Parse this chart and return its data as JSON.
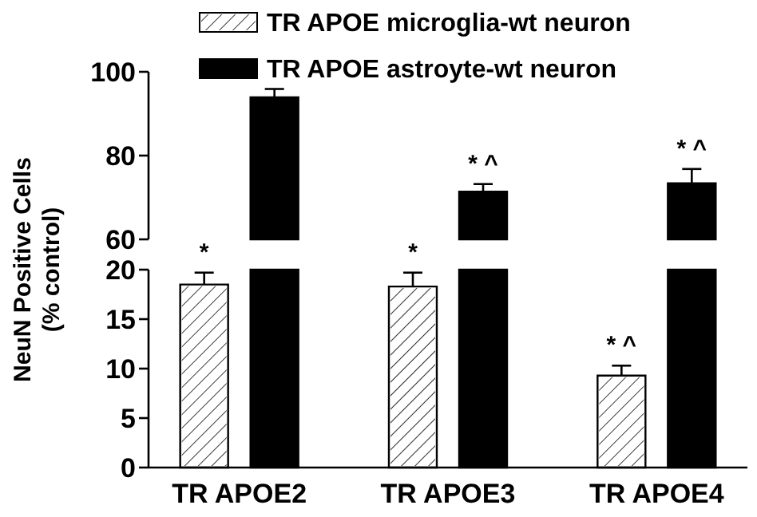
{
  "chart_data": [
    {
      "type": "bar",
      "ylabel": "NeuN Positive Cells\n(% control)",
      "categories": [
        null,
        null,
        null
      ],
      "legend": "top",
      "tick_labels": "y",
      "ylim": [
        60,
        100
      ],
      "yticks": [
        60,
        80,
        100
      ],
      "series": [
        {
          "name": "TR APOE astroyte-wt neuron",
          "color": "#000000",
          "values": [
            93.9,
            71.4,
            73.4
          ],
          "errors": [
            2.0,
            1.8,
            3.4
          ]
        }
      ],
      "annotations": [
        "* ^",
        "* ^"
      ]
    },
    {
      "type": "bar",
      "categories": [
        "TR APOE2",
        "TR APOE3",
        "TR APOE4"
      ],
      "ylim": [
        0,
        20
      ],
      "yticks": [
        0,
        5,
        10,
        15,
        20
      ],
      "legend": "top",
      "series": [
        {
          "name": "TR APOE microglia-wt neuron",
          "color": "#ffffff",
          "values": [
            18.5,
            18.3,
            9.3
          ],
          "errors": [
            1.2,
            1.4,
            1.0
          ]
        }
      ],
      "annotations": [
        "*",
        "*",
        "* ^"
      ]
    }
  ]
}
